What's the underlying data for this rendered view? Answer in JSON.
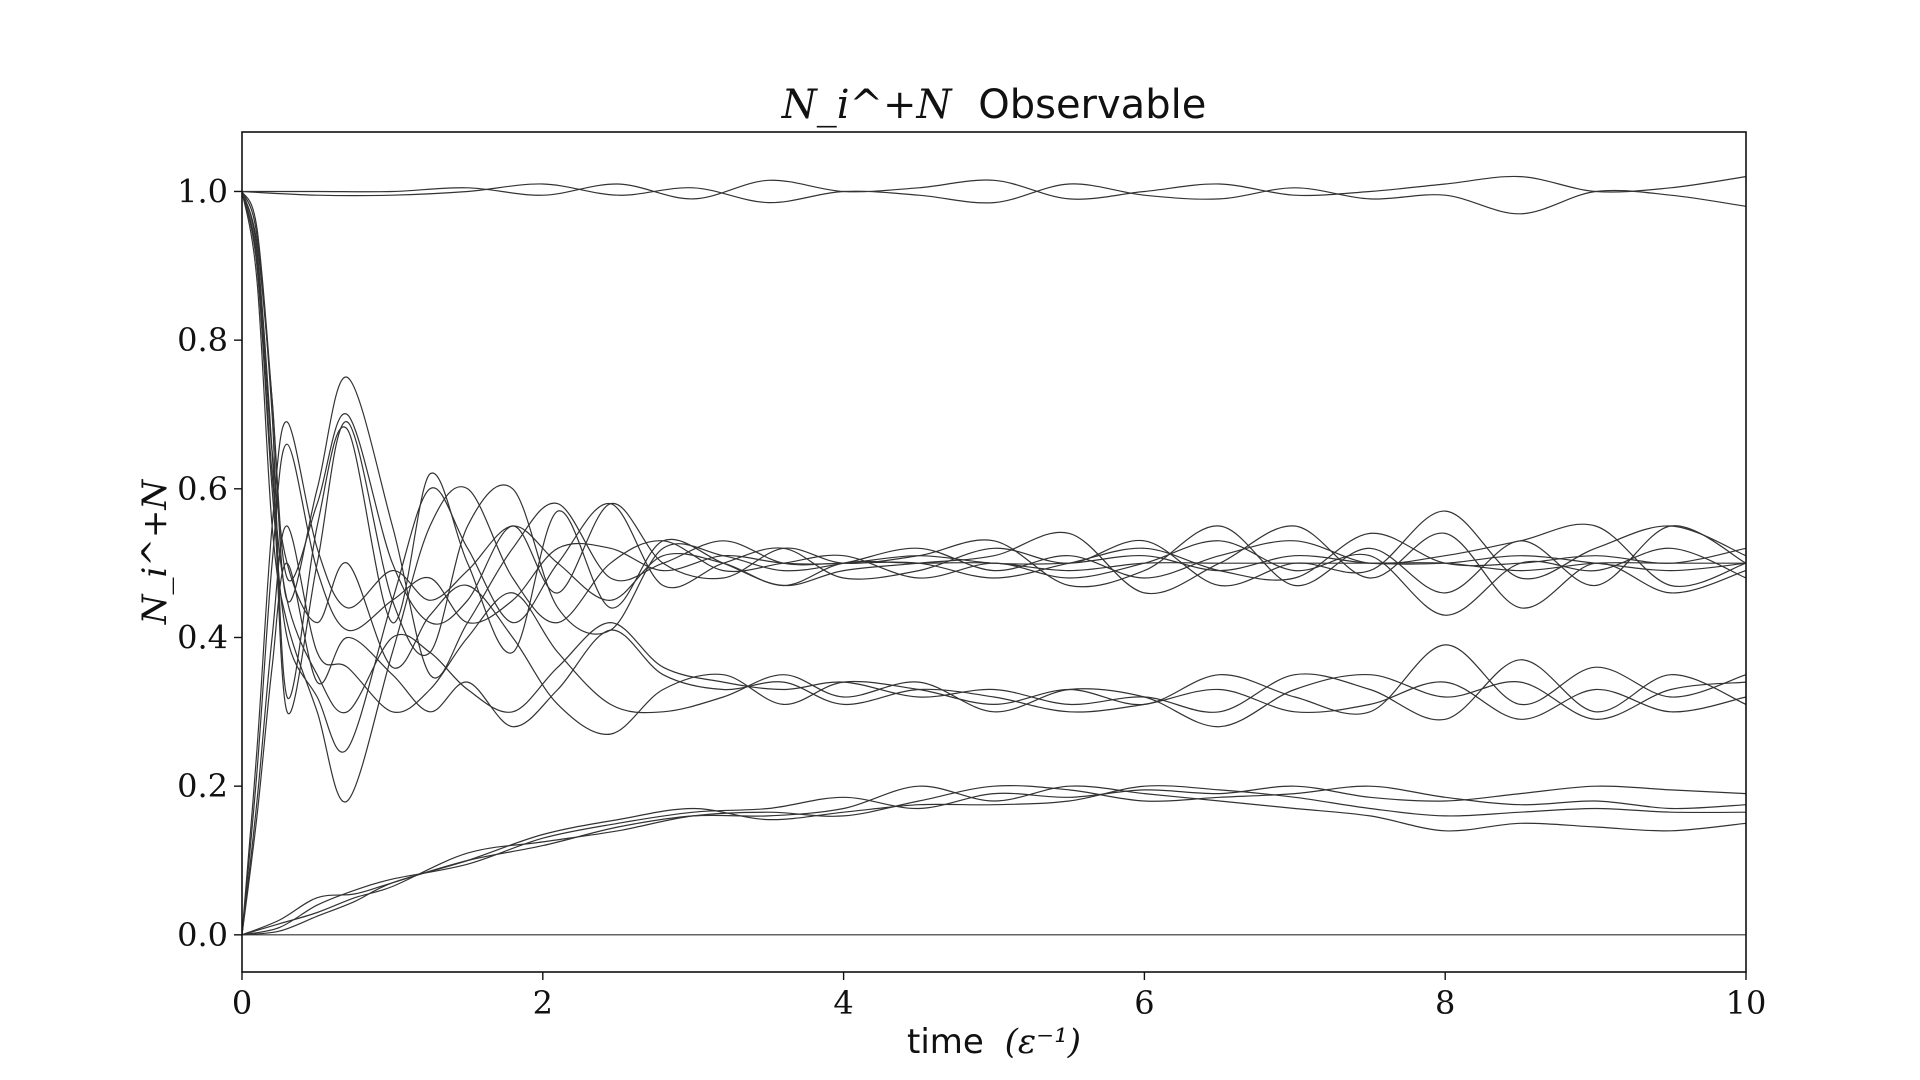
{
  "chart_data": {
    "type": "line",
    "title_math": "N_i^+N",
    "title_word": "Observable",
    "xlabel_word": "time",
    "xlabel_unit": "(ε⁻¹)",
    "ylabel_math": "N_i^+N",
    "xlim": [
      0,
      10
    ],
    "ylim": [
      -0.05,
      1.08
    ],
    "xticks": [
      {
        "value": 0,
        "label": "0"
      },
      {
        "value": 2,
        "label": "2"
      },
      {
        "value": 4,
        "label": "4"
      },
      {
        "value": 6,
        "label": "6"
      },
      {
        "value": 8,
        "label": "8"
      },
      {
        "value": 10,
        "label": "10"
      }
    ],
    "yticks": [
      {
        "value": 0.0,
        "label": "0.0"
      },
      {
        "value": 0.2,
        "label": "0.2"
      },
      {
        "value": 0.4,
        "label": "0.4"
      },
      {
        "value": 0.6,
        "label": "0.6"
      },
      {
        "value": 0.8,
        "label": "0.8"
      },
      {
        "value": 1.0,
        "label": "1.0"
      }
    ],
    "grid": false,
    "line_color": "#333333",
    "series": [
      {
        "x": [
          0,
          0.5,
          1,
          1.5,
          2,
          2.5,
          3,
          3.5,
          4,
          4.5,
          5,
          5.5,
          6,
          6.5,
          7,
          7.5,
          8,
          8.5,
          9,
          9.5,
          10
        ],
        "y": [
          1.0,
          1.0,
          1.0,
          1.005,
          0.995,
          1.01,
          0.99,
          1.015,
          1.0,
          1.005,
          1.015,
          0.99,
          1.0,
          1.01,
          0.995,
          1.0,
          1.01,
          1.02,
          1.0,
          1.005,
          1.02
        ]
      },
      {
        "x": [
          0,
          0.5,
          1,
          1.5,
          2,
          2.5,
          3,
          3.5,
          4,
          4.5,
          5,
          5.5,
          6,
          6.5,
          7,
          7.5,
          8,
          8.5,
          9,
          9.5,
          10
        ],
        "y": [
          1.0,
          0.995,
          0.995,
          1.0,
          1.01,
          0.995,
          1.005,
          0.985,
          1.0,
          0.995,
          0.985,
          1.01,
          0.995,
          0.99,
          1.005,
          0.99,
          0.995,
          0.97,
          1.0,
          0.995,
          0.98
        ]
      },
      {
        "x": [
          0,
          0.1,
          0.2,
          0.3,
          0.5,
          0.7,
          1.0,
          1.25,
          1.5,
          1.8,
          2.1,
          2.45,
          2.8,
          3.2,
          3.6,
          4,
          4.5,
          5,
          5.5,
          6,
          6.5,
          7,
          7.5,
          8,
          8.5,
          9,
          9.5,
          10
        ],
        "y": [
          1.0,
          0.93,
          0.72,
          0.48,
          0.58,
          0.7,
          0.5,
          0.42,
          0.45,
          0.55,
          0.46,
          0.58,
          0.5,
          0.48,
          0.52,
          0.5,
          0.51,
          0.53,
          0.47,
          0.49,
          0.55,
          0.47,
          0.52,
          0.46,
          0.53,
          0.47,
          0.55,
          0.5
        ]
      },
      {
        "x": [
          0,
          0.1,
          0.2,
          0.3,
          0.5,
          0.7,
          1.0,
          1.25,
          1.5,
          1.8,
          2.1,
          2.45,
          2.8,
          3.2,
          3.6,
          4,
          4.5,
          5,
          5.5,
          6,
          6.5,
          7,
          7.5,
          8,
          8.5,
          9,
          9.5,
          10
        ],
        "y": [
          1.0,
          0.94,
          0.7,
          0.32,
          0.55,
          0.68,
          0.42,
          0.62,
          0.5,
          0.38,
          0.57,
          0.44,
          0.53,
          0.5,
          0.47,
          0.49,
          0.5,
          0.51,
          0.54,
          0.46,
          0.5,
          0.55,
          0.48,
          0.54,
          0.44,
          0.5,
          0.46,
          0.49
        ]
      },
      {
        "x": [
          0,
          0.1,
          0.2,
          0.3,
          0.5,
          0.7,
          1.0,
          1.25,
          1.5,
          1.8,
          2.1,
          2.45,
          2.8,
          3.2,
          3.6,
          4,
          4.5,
          5,
          5.5,
          6,
          6.5,
          7,
          7.5,
          8,
          8.5,
          9,
          9.5,
          10
        ],
        "y": [
          1.0,
          0.9,
          0.6,
          0.4,
          0.32,
          0.25,
          0.45,
          0.6,
          0.52,
          0.42,
          0.5,
          0.58,
          0.47,
          0.5,
          0.52,
          0.48,
          0.49,
          0.52,
          0.5,
          0.53,
          0.47,
          0.5,
          0.49,
          0.57,
          0.48,
          0.52,
          0.55,
          0.51
        ]
      },
      {
        "x": [
          0,
          0.1,
          0.2,
          0.3,
          0.5,
          0.7,
          1.0,
          1.25,
          1.5,
          1.8,
          2.1,
          2.45,
          2.8,
          3.2,
          3.6,
          4,
          4.5,
          5,
          5.5,
          6,
          6.5,
          7,
          7.5,
          8,
          8.5,
          9,
          9.5,
          10
        ],
        "y": [
          1.0,
          0.88,
          0.55,
          0.42,
          0.3,
          0.18,
          0.38,
          0.55,
          0.6,
          0.48,
          0.42,
          0.5,
          0.53,
          0.49,
          0.5,
          0.51,
          0.48,
          0.5,
          0.48,
          0.5,
          0.53,
          0.49,
          0.51,
          0.43,
          0.5,
          0.49,
          0.52,
          0.48
        ]
      },
      {
        "x": [
          0,
          0.1,
          0.2,
          0.3,
          0.5,
          0.7,
          1.0,
          1.25,
          1.5,
          1.8,
          2.1,
          2.45,
          2.8,
          3.2,
          3.6,
          4,
          4.5,
          5,
          5.5,
          6,
          6.5,
          7,
          7.5,
          8,
          8.5,
          9,
          9.5,
          10
        ],
        "y": [
          1.0,
          0.92,
          0.65,
          0.3,
          0.5,
          0.69,
          0.45,
          0.38,
          0.55,
          0.6,
          0.44,
          0.41,
          0.52,
          0.51,
          0.49,
          0.5,
          0.52,
          0.49,
          0.51,
          0.48,
          0.51,
          0.53,
          0.5,
          0.51,
          0.53,
          0.55,
          0.47,
          0.5
        ]
      },
      {
        "x": [
          0,
          0.1,
          0.2,
          0.3,
          0.5,
          0.7,
          1.0,
          1.25,
          1.5,
          1.8,
          2.1,
          2.45,
          2.8,
          3.2,
          3.6,
          4,
          4.5,
          5,
          5.5,
          6,
          6.5,
          7,
          7.5,
          8,
          8.5,
          9,
          9.5,
          10
        ],
        "y": [
          1.0,
          0.95,
          0.72,
          0.45,
          0.6,
          0.75,
          0.55,
          0.35,
          0.42,
          0.52,
          0.58,
          0.48,
          0.5,
          0.53,
          0.5,
          0.5,
          0.5,
          0.48,
          0.5,
          0.52,
          0.49,
          0.48,
          0.54,
          0.5,
          0.5,
          0.51,
          0.5,
          0.52
        ]
      },
      {
        "x": [
          0,
          0.1,
          0.2,
          0.3,
          0.5,
          0.7,
          1.0,
          1.25,
          1.5,
          1.8,
          2.1,
          2.45,
          2.8,
          3.2,
          3.6,
          4,
          4.5,
          5,
          5.5,
          6,
          6.5,
          7,
          7.5,
          8,
          8.5,
          9,
          9.5,
          10
        ],
        "y": [
          0.0,
          0.25,
          0.55,
          0.69,
          0.52,
          0.44,
          0.49,
          0.45,
          0.49,
          0.55,
          0.5,
          0.45,
          0.51,
          0.5,
          0.47,
          0.5,
          0.5,
          0.5,
          0.49,
          0.5,
          0.5,
          0.5,
          0.5,
          0.5,
          0.49,
          0.5,
          0.5,
          0.5
        ]
      },
      {
        "x": [
          0,
          0.1,
          0.2,
          0.3,
          0.5,
          0.7,
          1.0,
          1.25,
          1.5,
          1.8,
          2.1,
          2.45,
          2.8,
          3.2,
          3.6,
          4,
          4.5,
          5,
          5.5,
          6,
          6.5,
          7,
          7.5,
          8,
          8.5,
          9,
          9.5,
          10
        ],
        "y": [
          0.0,
          0.22,
          0.5,
          0.66,
          0.49,
          0.41,
          0.45,
          0.48,
          0.42,
          0.45,
          0.52,
          0.52,
          0.49,
          0.51,
          0.5,
          0.5,
          0.51,
          0.5,
          0.5,
          0.51,
          0.49,
          0.51,
          0.5,
          0.5,
          0.51,
          0.5,
          0.49,
          0.5
        ]
      },
      {
        "x": [
          0,
          0.1,
          0.2,
          0.3,
          0.5,
          0.7,
          1.0,
          1.25,
          1.5,
          1.8,
          2.1,
          2.45,
          2.8,
          3.2,
          3.6,
          4,
          4.5,
          5,
          5.5,
          6,
          6.5,
          7,
          7.5,
          8,
          8.5,
          9,
          9.5,
          10
        ],
        "y": [
          1.0,
          0.9,
          0.62,
          0.45,
          0.35,
          0.3,
          0.4,
          0.38,
          0.33,
          0.3,
          0.36,
          0.42,
          0.36,
          0.34,
          0.33,
          0.34,
          0.32,
          0.33,
          0.31,
          0.32,
          0.3,
          0.35,
          0.33,
          0.29,
          0.37,
          0.3,
          0.35,
          0.31
        ]
      },
      {
        "x": [
          0,
          0.1,
          0.2,
          0.3,
          0.5,
          0.7,
          1.0,
          1.25,
          1.5,
          1.8,
          2.1,
          2.45,
          2.8,
          3.2,
          3.6,
          4,
          4.5,
          5,
          5.5,
          6,
          6.5,
          7,
          7.5,
          8,
          8.5,
          9,
          9.5,
          10
        ],
        "y": [
          1.0,
          0.91,
          0.65,
          0.5,
          0.42,
          0.5,
          0.36,
          0.43,
          0.47,
          0.4,
          0.31,
          0.27,
          0.33,
          0.35,
          0.31,
          0.34,
          0.33,
          0.31,
          0.33,
          0.31,
          0.35,
          0.32,
          0.3,
          0.39,
          0.31,
          0.36,
          0.32,
          0.35
        ]
      },
      {
        "x": [
          0,
          0.1,
          0.2,
          0.3,
          0.5,
          0.7,
          1.0,
          1.25,
          1.5,
          1.8,
          2.1,
          2.45,
          2.8,
          3.2,
          3.6,
          4,
          4.5,
          5,
          5.5,
          6,
          6.5,
          7,
          7.5,
          8,
          8.5,
          9,
          9.5,
          10
        ],
        "y": [
          0.0,
          0.18,
          0.4,
          0.55,
          0.38,
          0.36,
          0.3,
          0.33,
          0.4,
          0.46,
          0.38,
          0.31,
          0.3,
          0.32,
          0.35,
          0.32,
          0.34,
          0.3,
          0.33,
          0.32,
          0.28,
          0.33,
          0.35,
          0.32,
          0.34,
          0.29,
          0.33,
          0.34
        ]
      },
      {
        "x": [
          0,
          0.1,
          0.2,
          0.3,
          0.5,
          0.7,
          1.0,
          1.25,
          1.5,
          1.8,
          2.1,
          2.45,
          2.8,
          3.2,
          3.6,
          4,
          4.5,
          5,
          5.5,
          6,
          6.5,
          7,
          7.5,
          8,
          8.5,
          9,
          9.5,
          10
        ],
        "y": [
          0.0,
          0.16,
          0.36,
          0.5,
          0.34,
          0.4,
          0.35,
          0.3,
          0.34,
          0.28,
          0.33,
          0.41,
          0.35,
          0.33,
          0.34,
          0.31,
          0.33,
          0.32,
          0.3,
          0.31,
          0.33,
          0.3,
          0.31,
          0.34,
          0.29,
          0.33,
          0.3,
          0.32
        ]
      },
      {
        "x": [
          0,
          0.25,
          0.5,
          0.75,
          1,
          1.5,
          2,
          2.5,
          3,
          3.5,
          4,
          4.5,
          5,
          5.5,
          6,
          6.5,
          7,
          7.5,
          8,
          8.5,
          9,
          9.5,
          10
        ],
        "y": [
          0.0,
          0.02,
          0.05,
          0.055,
          0.07,
          0.1,
          0.12,
          0.145,
          0.16,
          0.16,
          0.17,
          0.2,
          0.18,
          0.2,
          0.19,
          0.18,
          0.17,
          0.16,
          0.14,
          0.15,
          0.145,
          0.14,
          0.15
        ]
      },
      {
        "x": [
          0,
          0.25,
          0.5,
          0.75,
          1,
          1.5,
          2,
          2.5,
          3,
          3.5,
          4,
          4.5,
          5,
          5.5,
          6,
          6.5,
          7,
          7.5,
          8,
          8.5,
          9,
          9.5,
          10
        ],
        "y": [
          0.0,
          0.01,
          0.04,
          0.06,
          0.075,
          0.095,
          0.13,
          0.15,
          0.165,
          0.17,
          0.185,
          0.17,
          0.19,
          0.185,
          0.195,
          0.19,
          0.2,
          0.185,
          0.18,
          0.19,
          0.2,
          0.195,
          0.19
        ]
      },
      {
        "x": [
          0,
          0.25,
          0.5,
          0.75,
          1,
          1.5,
          2,
          2.5,
          3,
          3.5,
          4,
          4.5,
          5,
          5.5,
          6,
          6.5,
          7,
          7.5,
          8,
          8.5,
          9,
          9.5,
          10
        ],
        "y": [
          0.0,
          0.015,
          0.03,
          0.05,
          0.065,
          0.11,
          0.125,
          0.14,
          0.16,
          0.165,
          0.16,
          0.18,
          0.2,
          0.195,
          0.18,
          0.185,
          0.19,
          0.2,
          0.185,
          0.175,
          0.18,
          0.17,
          0.175
        ]
      },
      {
        "x": [
          0,
          0.25,
          0.5,
          0.75,
          1,
          1.5,
          2,
          2.5,
          3,
          3.5,
          4,
          4.5,
          5,
          5.5,
          6,
          6.5,
          7,
          7.5,
          8,
          8.5,
          9,
          9.5,
          10
        ],
        "y": [
          0.0,
          0.005,
          0.025,
          0.045,
          0.07,
          0.1,
          0.135,
          0.155,
          0.17,
          0.155,
          0.165,
          0.175,
          0.175,
          0.18,
          0.2,
          0.195,
          0.185,
          0.17,
          0.16,
          0.165,
          0.17,
          0.165,
          0.165
        ]
      },
      {
        "x": [
          0,
          10
        ],
        "y": [
          0.0,
          0.0
        ]
      }
    ]
  }
}
